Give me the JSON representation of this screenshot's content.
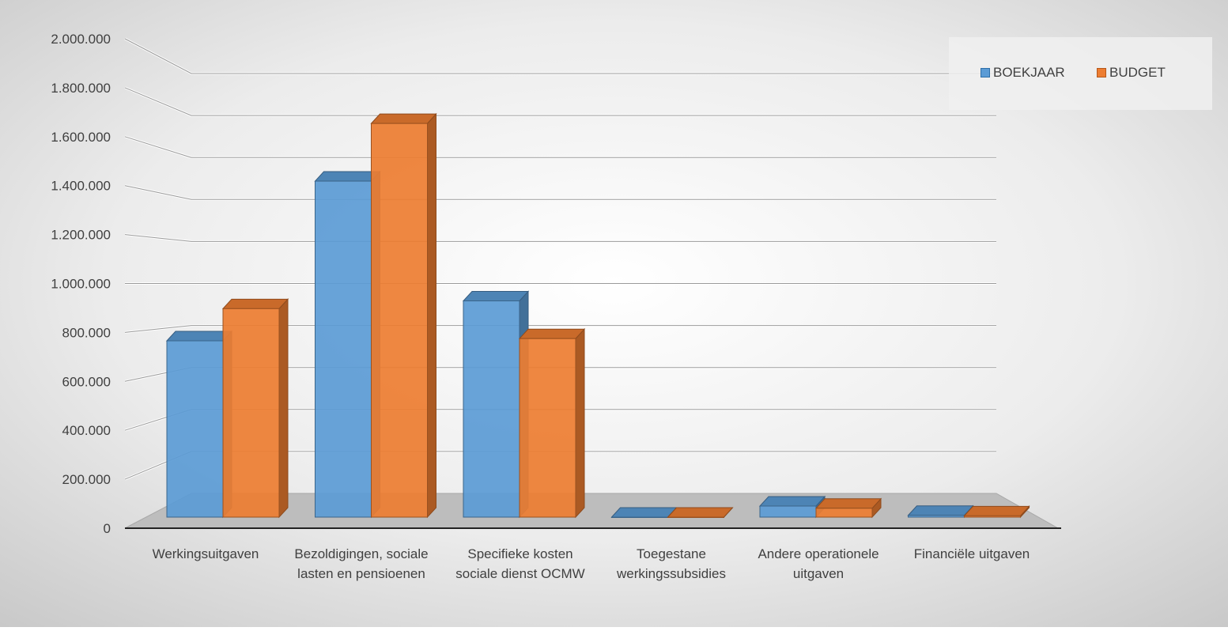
{
  "chart_data": {
    "type": "bar",
    "categories": [
      "Werkingsuitgaven",
      "Bezoldigingen, sociale lasten en pensioenen",
      "Specifieke kosten sociale dienst OCMW",
      "Toegestane werkingssubsidies",
      "Andere operationele uitgaven",
      "Financiële uitgaven"
    ],
    "series": [
      {
        "name": "BOEKJAAR",
        "color": "#5b9bd5",
        "values": [
          795000,
          1515000,
          975000,
          0,
          50000,
          8000
        ]
      },
      {
        "name": "BUDGET",
        "color": "#ed7d31",
        "values": [
          940000,
          1775000,
          805000,
          0,
          40000,
          6000
        ]
      }
    ],
    "ylim": [
      0,
      2000000
    ],
    "yticks": [
      "0",
      "200.000",
      "400.000",
      "600.000",
      "800.000",
      "1.000.000",
      "1.200.000",
      "1.400.000",
      "1.600.000",
      "1.800.000",
      "2.000.000"
    ],
    "legend_position": "top-right",
    "grid": true,
    "title": "",
    "xlabel": "",
    "ylabel": ""
  }
}
